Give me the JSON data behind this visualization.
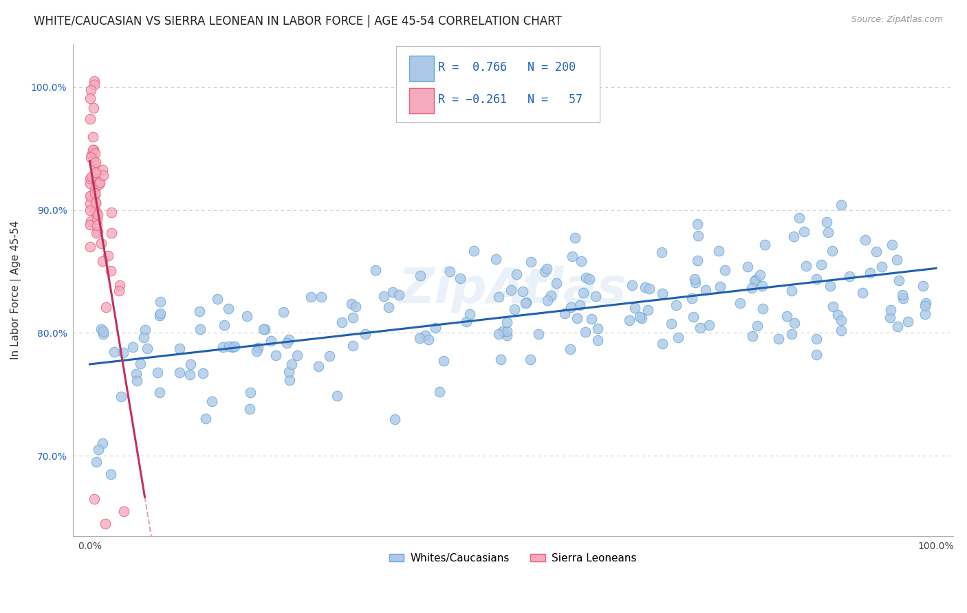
{
  "title": "WHITE/CAUCASIAN VS SIERRA LEONEAN IN LABOR FORCE | AGE 45-54 CORRELATION CHART",
  "source": "Source: ZipAtlas.com",
  "ylabel": "In Labor Force | Age 45-54",
  "xlim": [
    -0.02,
    1.02
  ],
  "ylim": [
    0.635,
    1.035
  ],
  "yticks": [
    0.7,
    0.8,
    0.9,
    1.0
  ],
  "ytick_labels": [
    "70.0%",
    "80.0%",
    "90.0%",
    "100.0%"
  ],
  "blue_R": 0.766,
  "blue_N": 200,
  "pink_R": -0.261,
  "pink_N": 57,
  "blue_color": "#adc8e8",
  "pink_color": "#f5aabe",
  "blue_edge_color": "#6aaad4",
  "pink_edge_color": "#e8607a",
  "blue_line_color": "#2060b0",
  "pink_line_color": "#c03060",
  "legend_text_color": "#2060c0",
  "watermark": "ZipAtlas",
  "background_color": "#ffffff",
  "grid_color": "#c8c8c8",
  "title_fontsize": 12,
  "axis_label_fontsize": 11,
  "tick_fontsize": 10,
  "legend_fontsize": 12
}
